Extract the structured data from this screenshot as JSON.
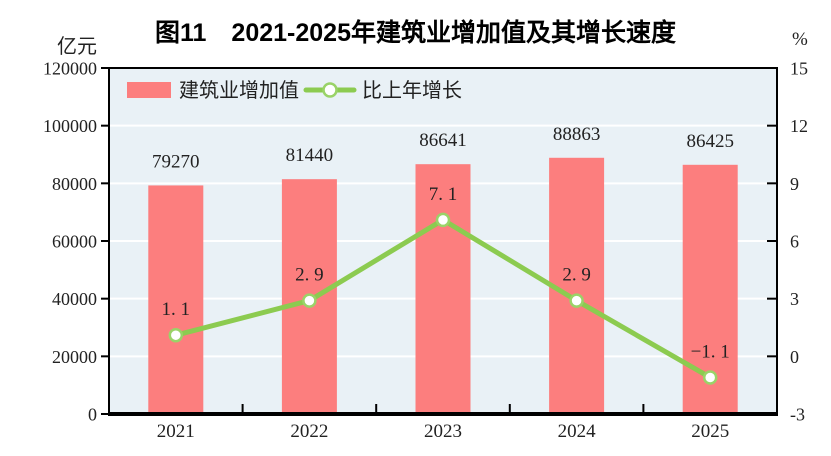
{
  "chart_data": {
    "type": "bar+line",
    "title": "图11　2021-2025年建筑业增加值及其增长速度",
    "categories": [
      "2021",
      "2022",
      "2023",
      "2024",
      "2025"
    ],
    "series": [
      {
        "name": "建筑业增加值",
        "type": "bar",
        "axis": "left",
        "color": "#FC7E7E",
        "values": [
          79270,
          81440,
          86641,
          88863,
          86425
        ],
        "labels": [
          "79270",
          "81440",
          "86641",
          "88863",
          "86425"
        ]
      },
      {
        "name": "比上年增长",
        "type": "line",
        "axis": "right",
        "color": "#8CCB50",
        "marker_fill": "#FFFFFF",
        "marker_stroke": "#9AD368",
        "values": [
          1.1,
          2.9,
          7.1,
          2.9,
          -1.1
        ],
        "labels": [
          "1. 1",
          "2. 9",
          "7. 1",
          "2. 9",
          "−1. 1"
        ]
      }
    ],
    "left_axis": {
      "unit": "亿元",
      "min": 0,
      "max": 120000,
      "step": 20000,
      "tick_labels": [
        "0",
        "20000",
        "40000",
        "60000",
        "80000",
        "100000",
        "120000"
      ]
    },
    "right_axis": {
      "unit": "%",
      "min": -3,
      "max": 15,
      "step": 3,
      "tick_labels": [
        "-3",
        "0",
        "3",
        "6",
        "9",
        "12",
        "15"
      ]
    },
    "legend": {
      "position": "top-left-inside"
    },
    "plot": {
      "background": "#E9F1F6",
      "gridline_color": "#FFFFFF",
      "border_color": "#000000",
      "grid_on": true
    }
  }
}
